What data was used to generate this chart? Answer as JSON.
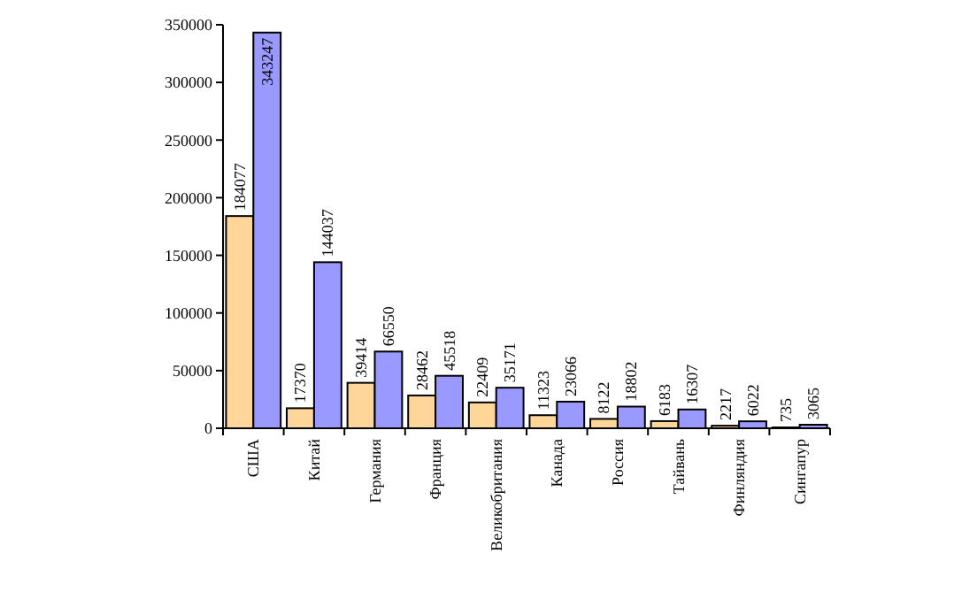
{
  "chart_data": {
    "type": "bar",
    "categories": [
      "США",
      "Китай",
      "Германия",
      "Франция",
      "Великобритания",
      "Канада",
      "Россия",
      "Тайвань",
      "Финляндия",
      "Сингапур"
    ],
    "series": [
      {
        "color": "#ffd699",
        "values": [
          184077,
          17370,
          39414,
          28462,
          22409,
          11323,
          8122,
          6183,
          2217,
          735
        ]
      },
      {
        "color": "#9999ff",
        "values": [
          343247,
          144037,
          66550,
          45518,
          35171,
          23066,
          18802,
          16307,
          6022,
          3065
        ]
      }
    ],
    "ylim": [
      0,
      350000
    ],
    "yticks": [
      0,
      50000,
      100000,
      150000,
      200000,
      250000,
      300000,
      350000
    ],
    "data_labels": true
  }
}
